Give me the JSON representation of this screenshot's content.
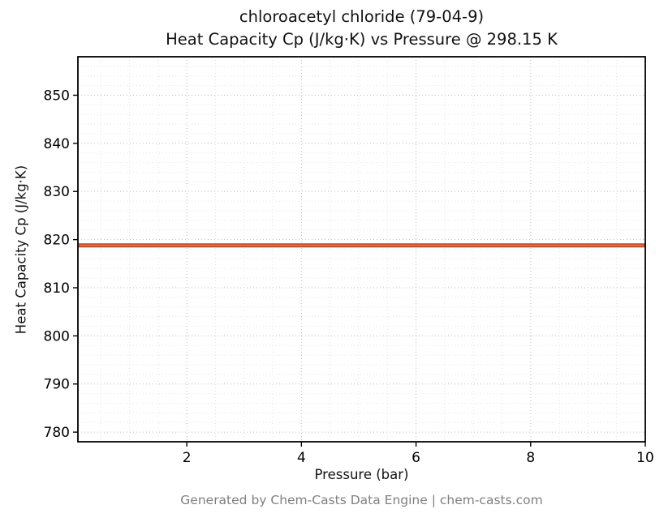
{
  "page": {
    "title_line1": "chloroacetyl chloride (79-04-9)",
    "title_line2": "Heat Capacity Cp (J/kg·K) vs Pressure @ 298.15 K",
    "footer": "Generated by Chem-Casts Data Engine | chem-casts.com"
  },
  "chart_data": {
    "type": "line",
    "title": "chloroacetyl chloride (79-04-9) — Heat Capacity Cp (J/kg·K) vs Pressure @ 298.15 K",
    "xlabel": "Pressure (bar)",
    "ylabel": "Heat Capacity Cp (J/kg·K)",
    "xlim": [
      0.1,
      10
    ],
    "ylim": [
      778,
      858
    ],
    "x_ticks": [
      2,
      4,
      6,
      8,
      10
    ],
    "y_ticks": [
      780,
      790,
      800,
      810,
      820,
      830,
      840,
      850
    ],
    "x_minor_step": 0.5,
    "y_minor_step": 2,
    "grid": true,
    "legend": "none",
    "series": [
      {
        "name": "Heat Capacity Cp",
        "color_outer": "#b84226",
        "color_inner": "#e2683a",
        "x": [
          0.1,
          10
        ],
        "y": [
          818.8,
          818.8
        ]
      }
    ],
    "constant_value": 818.8,
    "temperature_K": 298.15
  },
  "colors": {
    "axis": "#000000",
    "grid_major": "#bdbdbd",
    "grid_minor": "#e4e4e4",
    "tick_label": "#000000",
    "footer_text": "#808080"
  }
}
